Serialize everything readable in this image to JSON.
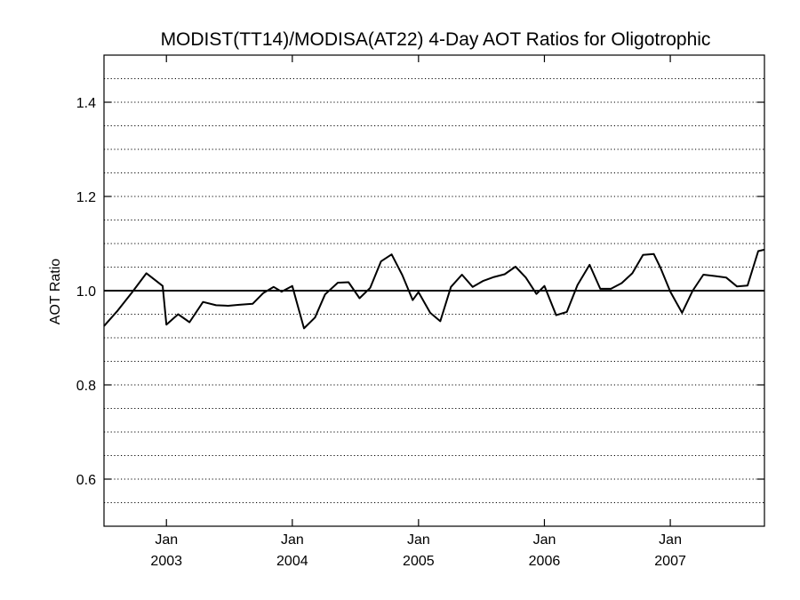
{
  "chart_data": {
    "type": "line",
    "title": "MODIST(TT14)/MODISA(AT22) 4-Day AOT Ratios for Oligotrophic",
    "xlabel": "",
    "ylabel": "AOT Ratio",
    "xlim": [
      "2002-07-04",
      "2007-10-01"
    ],
    "ylim": [
      0.5,
      1.5
    ],
    "grid": "horizontal dotted",
    "x_ticks": [
      {
        "date": "2003-01-01",
        "month": "Jan",
        "year": "2003"
      },
      {
        "date": "2004-01-01",
        "month": "Jan",
        "year": "2004"
      },
      {
        "date": "2005-01-01",
        "month": "Jan",
        "year": "2005"
      },
      {
        "date": "2006-01-01",
        "month": "Jan",
        "year": "2006"
      },
      {
        "date": "2007-01-01",
        "month": "Jan",
        "year": "2007"
      }
    ],
    "y_ticks": [
      {
        "value": 0.6,
        "label": "0.6"
      },
      {
        "value": 0.8,
        "label": "0.8"
      },
      {
        "value": 1.0,
        "label": "1.0"
      },
      {
        "value": 1.2,
        "label": "1.2"
      },
      {
        "value": 1.4,
        "label": "1.4"
      }
    ],
    "grid_values": [
      0.55,
      0.6,
      0.65,
      0.7,
      0.75,
      0.8,
      0.85,
      0.9,
      0.95,
      1.05,
      1.1,
      1.15,
      1.2,
      1.25,
      1.3,
      1.35,
      1.4,
      1.45
    ],
    "reference_line": 1.0,
    "series": [
      {
        "x": [
          "2002-07-04",
          "2002-08-13",
          "2002-09-24",
          "2002-11-04",
          "2002-12-21",
          "2003-01-01",
          "2003-02-04",
          "2003-03-09",
          "2003-04-17",
          "2003-05-25",
          "2003-06-29",
          "2003-07-31",
          "2003-09-08",
          "2003-10-09",
          "2003-11-08",
          "2003-12-01",
          "2004-01-01",
          "2004-02-04",
          "2004-03-07",
          "2004-04-05",
          "2004-05-12",
          "2004-06-12",
          "2004-07-14",
          "2004-08-14",
          "2004-09-14",
          "2004-10-15",
          "2004-11-15",
          "2004-12-15",
          "2005-01-01",
          "2005-02-04",
          "2005-03-05",
          "2005-04-05",
          "2005-05-07",
          "2005-06-07",
          "2005-07-08",
          "2005-08-08",
          "2005-09-08",
          "2005-10-09",
          "2005-11-08",
          "2005-12-09",
          "2006-01-01",
          "2006-02-04",
          "2006-03-07",
          "2006-04-07",
          "2006-05-12",
          "2006-06-12",
          "2006-07-13",
          "2006-08-13",
          "2006-09-13",
          "2006-10-14",
          "2006-11-14",
          "2006-12-04",
          "2007-01-01",
          "2007-02-04",
          "2007-03-07",
          "2007-04-07",
          "2007-05-12",
          "2007-06-12",
          "2007-07-13",
          "2007-08-13",
          "2007-09-13",
          "2007-10-01"
        ],
        "y": [
          0.925,
          0.958,
          0.997,
          1.037,
          1.01,
          0.928,
          0.95,
          0.933,
          0.976,
          0.969,
          0.968,
          0.97,
          0.972,
          0.995,
          1.008,
          0.998,
          1.01,
          0.92,
          0.943,
          0.992,
          1.017,
          1.018,
          0.984,
          1.006,
          1.062,
          1.077,
          1.033,
          0.98,
          0.997,
          0.953,
          0.935,
          1.008,
          1.034,
          1.008,
          1.021,
          1.029,
          1.035,
          1.051,
          1.028,
          0.993,
          1.01,
          0.948,
          0.955,
          1.012,
          1.055,
          1.004,
          1.004,
          1.016,
          1.037,
          1.076,
          1.078,
          1.048,
          0.998,
          0.953,
          1.0,
          1.034,
          1.031,
          1.028,
          1.009,
          1.011,
          1.084,
          1.087
        ]
      }
    ]
  }
}
